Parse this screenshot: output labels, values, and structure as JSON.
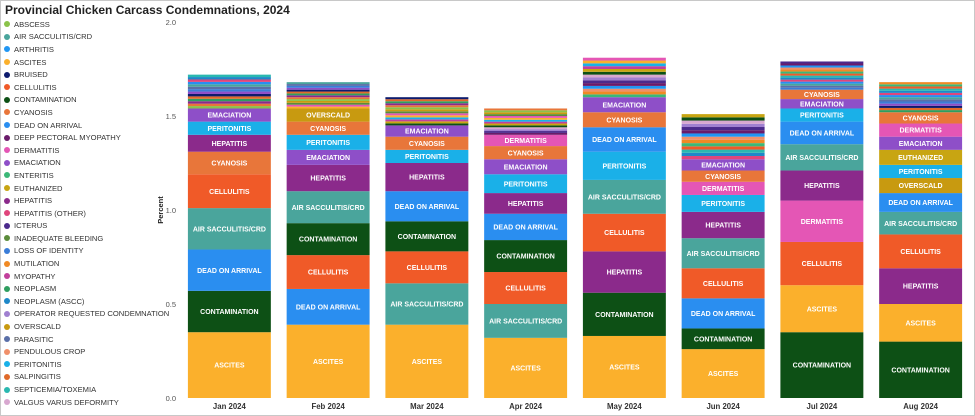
{
  "chart_data": {
    "type": "bar",
    "stacked": true,
    "title": "Provincial Chicken Carcass Condemnations, 2024",
    "ylabel": "Percent",
    "xlabel": "",
    "ylim": [
      0,
      2.0
    ],
    "yticks": [
      "0.0",
      "0.5",
      "1.0",
      "1.5",
      "2.0"
    ],
    "legend_position": "left",
    "categories": [
      "Jan 2024",
      "Feb 2024",
      "Mar 2024",
      "Apr 2024",
      "May 2024",
      "Jun 2024",
      "Jul 2024",
      "Aug 2024"
    ],
    "legend": [
      {
        "name": "ABSCESS",
        "color": "#8bc34a"
      },
      {
        "name": "AIR SACCULITIS/CRD",
        "color": "#4aa59c"
      },
      {
        "name": "ARTHRITIS",
        "color": "#2196f3"
      },
      {
        "name": "ASCITES",
        "color": "#fbb02c"
      },
      {
        "name": "BRUISED",
        "color": "#0d1b6e"
      },
      {
        "name": "CELLULITIS",
        "color": "#f05a28"
      },
      {
        "name": "CONTAMINATION",
        "color": "#0d5015"
      },
      {
        "name": "CYANOSIS",
        "color": "#e8763a"
      },
      {
        "name": "DEAD ON ARRIVAL",
        "color": "#2a8ef0"
      },
      {
        "name": "DEEP PECTORAL MYOPATHY",
        "color": "#6a1b6a"
      },
      {
        "name": "DERMATITIS",
        "color": "#e456b5"
      },
      {
        "name": "EMACIATION",
        "color": "#8e4fc8"
      },
      {
        "name": "ENTERITIS",
        "color": "#3cb878"
      },
      {
        "name": "EUTHANIZED",
        "color": "#c8a512"
      },
      {
        "name": "HEPATITIS",
        "color": "#8b2a8b"
      },
      {
        "name": "HEPATITIS (OTHER)",
        "color": "#e0457b"
      },
      {
        "name": "ICTERUS",
        "color": "#4b2a8c"
      },
      {
        "name": "INADEQUATE BLEEDING",
        "color": "#5b8c3a"
      },
      {
        "name": "LOSS OF IDENTITY",
        "color": "#3a7dd8"
      },
      {
        "name": "MUTILATION",
        "color": "#f08a24"
      },
      {
        "name": "MYOPATHY",
        "color": "#c2409c"
      },
      {
        "name": "NEOPLASM",
        "color": "#2f9e5f"
      },
      {
        "name": "NEOPLASM (ASCC)",
        "color": "#1e88c8"
      },
      {
        "name": "OPERATOR REQUESTED CONDEMNATION",
        "color": "#a080d0"
      },
      {
        "name": "OVERSCALD",
        "color": "#c89a10"
      },
      {
        "name": "PARASITIC",
        "color": "#5a6fa8"
      },
      {
        "name": "PENDULOUS CROP",
        "color": "#f0906a"
      },
      {
        "name": "PERITONITIS",
        "color": "#1ab0e8"
      },
      {
        "name": "SALPINGITIS",
        "color": "#e06a2a"
      },
      {
        "name": "SEPTICEMIA/TOXEMIA",
        "color": "#2ab8b0"
      },
      {
        "name": "VALGUS VARUS DEFORMITY",
        "color": "#d8a8d0"
      }
    ],
    "bars": [
      {
        "total": 1.72,
        "segments": [
          {
            "name": "ASCITES",
            "value": 0.35,
            "color": "#fbb02c"
          },
          {
            "name": "CONTAMINATION",
            "value": 0.22,
            "color": "#0d5015"
          },
          {
            "name": "DEAD ON ARRIVAL",
            "value": 0.22,
            "color": "#2a8ef0"
          },
          {
            "name": "AIR SACCULITIS/CRD",
            "value": 0.22,
            "color": "#4aa59c"
          },
          {
            "name": "CELLULITIS",
            "value": 0.18,
            "color": "#f05a28"
          },
          {
            "name": "CYANOSIS",
            "value": 0.12,
            "color": "#e8763a"
          },
          {
            "name": "HEPATITIS",
            "value": 0.09,
            "color": "#8b2a8b"
          },
          {
            "name": "PERITONITIS",
            "value": 0.07,
            "color": "#1ab0e8"
          },
          {
            "name": "EMACIATION",
            "value": 0.07,
            "color": "#8e4fc8"
          }
        ]
      },
      {
        "total": 1.68,
        "segments": [
          {
            "name": "ASCITES",
            "value": 0.39,
            "color": "#fbb02c"
          },
          {
            "name": "DEAD ON ARRIVAL",
            "value": 0.19,
            "color": "#2a8ef0"
          },
          {
            "name": "CELLULITIS",
            "value": 0.18,
            "color": "#f05a28"
          },
          {
            "name": "CONTAMINATION",
            "value": 0.17,
            "color": "#0d5015"
          },
          {
            "name": "AIR SACCULITIS/CRD",
            "value": 0.17,
            "color": "#4aa59c"
          },
          {
            "name": "HEPATITIS",
            "value": 0.14,
            "color": "#8b2a8b"
          },
          {
            "name": "EMACIATION",
            "value": 0.08,
            "color": "#8e4fc8"
          },
          {
            "name": "PERITONITIS",
            "value": 0.08,
            "color": "#1ab0e8"
          },
          {
            "name": "CYANOSIS",
            "value": 0.07,
            "color": "#e8763a"
          },
          {
            "name": "OVERSCALD",
            "value": 0.07,
            "color": "#c89a10"
          }
        ]
      },
      {
        "total": 1.6,
        "segments": [
          {
            "name": "ASCITES",
            "value": 0.39,
            "color": "#fbb02c"
          },
          {
            "name": "AIR SACCULITIS/CRD",
            "value": 0.22,
            "color": "#4aa59c"
          },
          {
            "name": "CELLULITIS",
            "value": 0.17,
            "color": "#f05a28"
          },
          {
            "name": "CONTAMINATION",
            "value": 0.16,
            "color": "#0d5015"
          },
          {
            "name": "DEAD ON ARRIVAL",
            "value": 0.16,
            "color": "#2a8ef0"
          },
          {
            "name": "HEPATITIS",
            "value": 0.15,
            "color": "#8b2a8b"
          },
          {
            "name": "PERITONITIS",
            "value": 0.07,
            "color": "#1ab0e8"
          },
          {
            "name": "CYANOSIS",
            "value": 0.07,
            "color": "#e8763a"
          },
          {
            "name": "EMACIATION",
            "value": 0.06,
            "color": "#8e4fc8"
          }
        ]
      },
      {
        "total": 1.54,
        "segments": [
          {
            "name": "ASCITES",
            "value": 0.32,
            "color": "#fbb02c"
          },
          {
            "name": "AIR SACCULITIS/CRD",
            "value": 0.18,
            "color": "#4aa59c"
          },
          {
            "name": "CELLULITIS",
            "value": 0.17,
            "color": "#f05a28"
          },
          {
            "name": "CONTAMINATION",
            "value": 0.17,
            "color": "#0d5015"
          },
          {
            "name": "DEAD ON ARRIVAL",
            "value": 0.14,
            "color": "#2a8ef0"
          },
          {
            "name": "HEPATITIS",
            "value": 0.11,
            "color": "#8b2a8b"
          },
          {
            "name": "PERITONITIS",
            "value": 0.1,
            "color": "#1ab0e8"
          },
          {
            "name": "EMACIATION",
            "value": 0.08,
            "color": "#8e4fc8"
          },
          {
            "name": "CYANOSIS",
            "value": 0.07,
            "color": "#e8763a"
          },
          {
            "name": "DERMATITIS",
            "value": 0.06,
            "color": "#e456b5"
          }
        ]
      },
      {
        "total": 1.81,
        "segments": [
          {
            "name": "ASCITES",
            "value": 0.33,
            "color": "#fbb02c"
          },
          {
            "name": "CONTAMINATION",
            "value": 0.23,
            "color": "#0d5015"
          },
          {
            "name": "HEPATITIS",
            "value": 0.22,
            "color": "#8b2a8b"
          },
          {
            "name": "CELLULITIS",
            "value": 0.2,
            "color": "#f05a28"
          },
          {
            "name": "AIR SACCULITIS/CRD",
            "value": 0.18,
            "color": "#4aa59c"
          },
          {
            "name": "PERITONITIS",
            "value": 0.15,
            "color": "#1ab0e8"
          },
          {
            "name": "DEAD ON ARRIVAL",
            "value": 0.13,
            "color": "#2a8ef0"
          },
          {
            "name": "CYANOSIS",
            "value": 0.08,
            "color": "#e8763a"
          },
          {
            "name": "EMACIATION",
            "value": 0.08,
            "color": "#8e4fc8"
          }
        ]
      },
      {
        "total": 1.51,
        "segments": [
          {
            "name": "ASCITES",
            "value": 0.26,
            "color": "#fbb02c"
          },
          {
            "name": "CONTAMINATION",
            "value": 0.11,
            "color": "#0d5015"
          },
          {
            "name": "DEAD ON ARRIVAL",
            "value": 0.16,
            "color": "#2a8ef0"
          },
          {
            "name": "CELLULITIS",
            "value": 0.16,
            "color": "#f05a28"
          },
          {
            "name": "AIR SACCULITIS/CRD",
            "value": 0.16,
            "color": "#4aa59c"
          },
          {
            "name": "HEPATITIS",
            "value": 0.14,
            "color": "#8b2a8b"
          },
          {
            "name": "PERITONITIS",
            "value": 0.09,
            "color": "#1ab0e8"
          },
          {
            "name": "DERMATITIS",
            "value": 0.07,
            "color": "#e456b5"
          },
          {
            "name": "CYANOSIS",
            "value": 0.06,
            "color": "#e8763a"
          },
          {
            "name": "EMACIATION",
            "value": 0.06,
            "color": "#8e4fc8"
          }
        ]
      },
      {
        "total": 1.79,
        "segments": [
          {
            "name": "CONTAMINATION",
            "value": 0.35,
            "color": "#0d5015"
          },
          {
            "name": "ASCITES",
            "value": 0.25,
            "color": "#fbb02c"
          },
          {
            "name": "CELLULITIS",
            "value": 0.23,
            "color": "#f05a28"
          },
          {
            "name": "DERMATITIS",
            "value": 0.22,
            "color": "#e456b5"
          },
          {
            "name": "HEPATITIS",
            "value": 0.16,
            "color": "#8b2a8b"
          },
          {
            "name": "AIR SACCULITIS/CRD",
            "value": 0.14,
            "color": "#4aa59c"
          },
          {
            "name": "DEAD ON ARRIVAL",
            "value": 0.12,
            "color": "#2a8ef0"
          },
          {
            "name": "PERITONITIS",
            "value": 0.07,
            "color": "#1ab0e8"
          },
          {
            "name": "EMACIATION",
            "value": 0.05,
            "color": "#8e4fc8"
          },
          {
            "name": "CYANOSIS",
            "value": 0.05,
            "color": "#e8763a"
          }
        ]
      },
      {
        "total": 1.68,
        "segments": [
          {
            "name": "CONTAMINATION",
            "value": 0.3,
            "color": "#0d5015"
          },
          {
            "name": "ASCITES",
            "value": 0.2,
            "color": "#fbb02c"
          },
          {
            "name": "HEPATITIS",
            "value": 0.19,
            "color": "#8b2a8b"
          },
          {
            "name": "CELLULITIS",
            "value": 0.18,
            "color": "#f05a28"
          },
          {
            "name": "AIR SACCULITIS/CRD",
            "value": 0.12,
            "color": "#4aa59c"
          },
          {
            "name": "DEAD ON ARRIVAL",
            "value": 0.1,
            "color": "#2a8ef0"
          },
          {
            "name": "OVERSCALD",
            "value": 0.08,
            "color": "#c89a10"
          },
          {
            "name": "PERITONITIS",
            "value": 0.07,
            "color": "#1ab0e8"
          },
          {
            "name": "EUTHANIZED",
            "value": 0.08,
            "color": "#c8a512"
          },
          {
            "name": "EMACIATION",
            "value": 0.07,
            "color": "#8e4fc8"
          },
          {
            "name": "DERMATITIS",
            "value": 0.07,
            "color": "#e456b5"
          },
          {
            "name": "CYANOSIS",
            "value": 0.06,
            "color": "#e8763a"
          }
        ]
      }
    ]
  }
}
